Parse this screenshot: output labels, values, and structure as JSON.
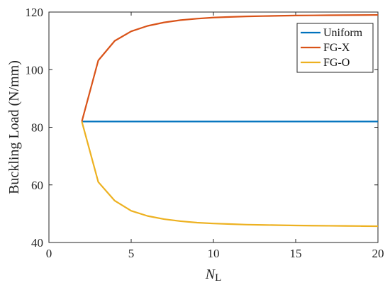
{
  "chart_data": {
    "type": "line",
    "title": "",
    "xlabel": "N",
    "xlabel_sub": "L",
    "ylabel": "Buckling Load (N/mm)",
    "xlim": [
      0,
      20
    ],
    "ylim": [
      40,
      120
    ],
    "xticks": [
      0,
      5,
      10,
      15,
      20
    ],
    "yticks": [
      40,
      60,
      80,
      100,
      120
    ],
    "grid": false,
    "legend_position": "top-right",
    "series": [
      {
        "name": "Uniform",
        "color": "#0072BD",
        "x": [
          2,
          3,
          4,
          5,
          6,
          7,
          8,
          9,
          10,
          11,
          12,
          13,
          14,
          15,
          16,
          17,
          18,
          19,
          20
        ],
        "y": [
          82,
          82,
          82,
          82,
          82,
          82,
          82,
          82,
          82,
          82,
          82,
          82,
          82,
          82,
          82,
          82,
          82,
          82,
          82
        ]
      },
      {
        "name": "FG-X",
        "color": "#D95319",
        "x": [
          2,
          3,
          4,
          5,
          6,
          7,
          8,
          9,
          10,
          11,
          12,
          13,
          14,
          15,
          16,
          17,
          18,
          19,
          20
        ],
        "y": [
          82,
          103.2,
          110,
          113.3,
          115.2,
          116.4,
          117.2,
          117.7,
          118.1,
          118.3,
          118.5,
          118.6,
          118.7,
          118.8,
          118.85,
          118.9,
          118.93,
          118.96,
          119
        ]
      },
      {
        "name": "FG-O",
        "color": "#EDB120",
        "x": [
          2,
          3,
          4,
          5,
          6,
          7,
          8,
          9,
          10,
          11,
          12,
          13,
          14,
          15,
          16,
          17,
          18,
          19,
          20
        ],
        "y": [
          82,
          61,
          54.5,
          51,
          49.2,
          48.1,
          47.4,
          46.9,
          46.6,
          46.4,
          46.2,
          46.1,
          46,
          45.9,
          45.85,
          45.8,
          45.75,
          45.7,
          45.65
        ]
      }
    ]
  }
}
